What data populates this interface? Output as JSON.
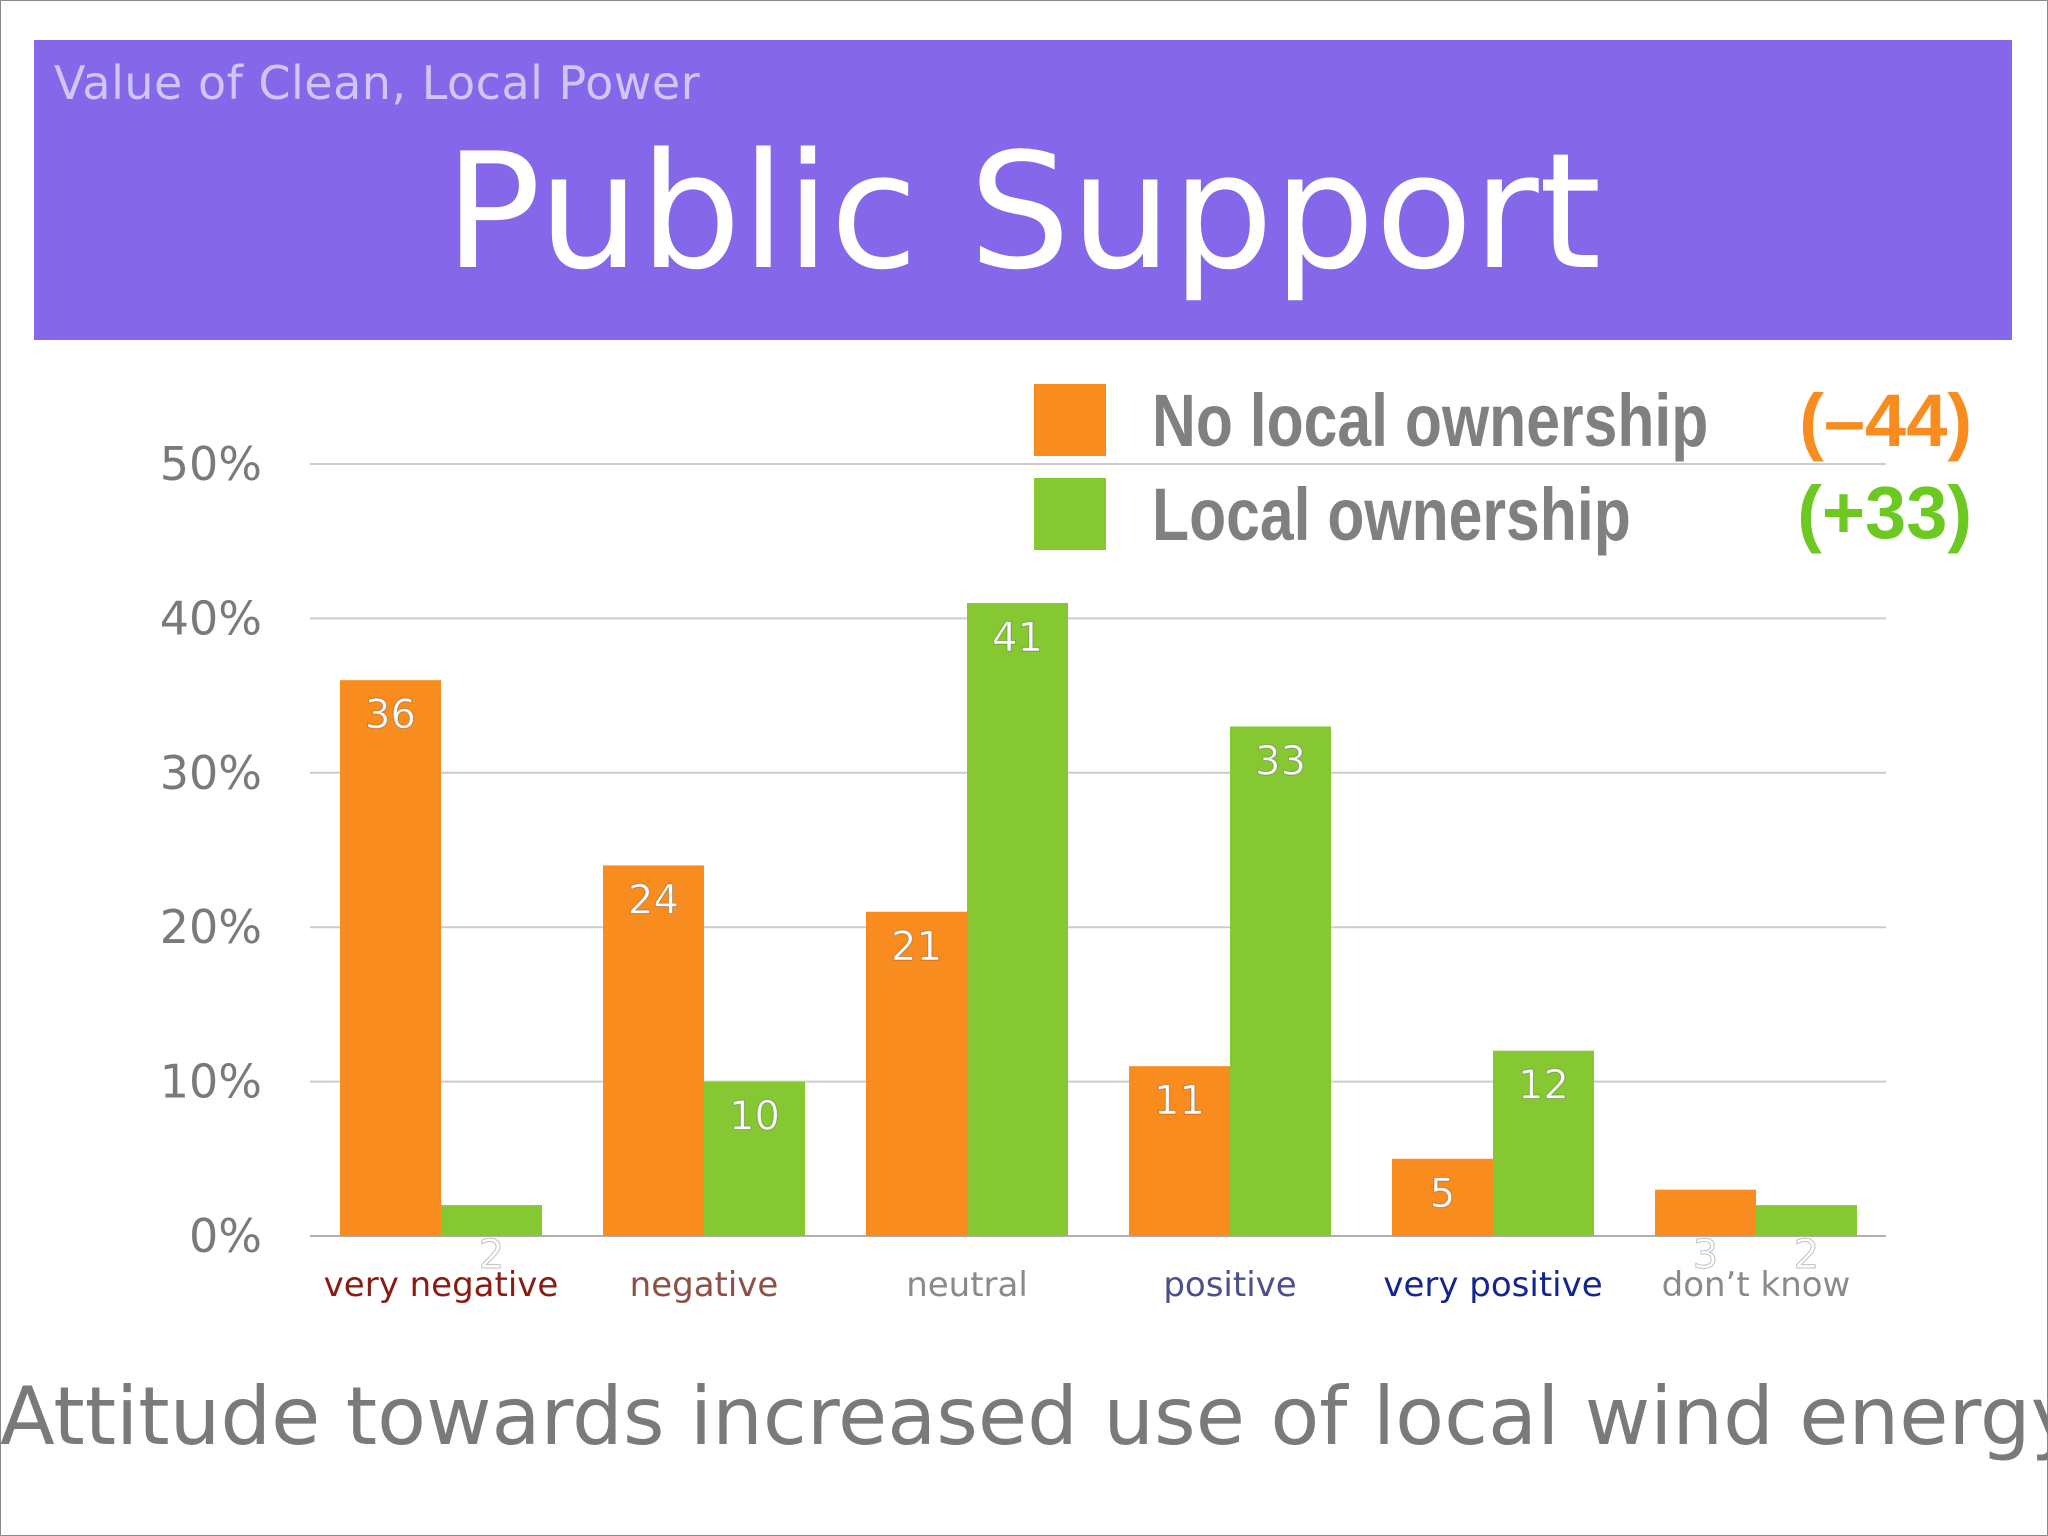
{
  "header": {
    "kicker": "Value of Clean, Local Power",
    "title": "Public Support"
  },
  "legend": [
    {
      "label": "No local ownership",
      "delta": "(–44)",
      "color": "#f98c1e"
    },
    {
      "label": "Local ownership",
      "delta": "(+33)",
      "color": "#86c831"
    }
  ],
  "footer": "Attitude towards increased use of local wind energy",
  "colors": {
    "no_local": "#f98c1e",
    "local": "#86c831",
    "delta_negative": "#f98c1e",
    "delta_positive": "#6cc922"
  },
  "chart_data": {
    "type": "bar",
    "title": "Public Support",
    "xlabel": "Attitude towards increased use of local wind energy",
    "ylabel": "",
    "ylim": [
      0,
      50
    ],
    "yticks": [
      0,
      10,
      20,
      30,
      40,
      50
    ],
    "ytick_labels": [
      "0%",
      "10%",
      "20%",
      "30%",
      "40%",
      "50%"
    ],
    "categories": [
      "very negative",
      "negative",
      "neutral",
      "positive",
      "very positive",
      "don’t know"
    ],
    "category_colors": [
      "#8b1a12",
      "#8e4f44",
      "#8a8a8a",
      "#4b4f8e",
      "#15258f",
      "#8a8a8a"
    ],
    "series": [
      {
        "name": "No local ownership",
        "values": [
          36,
          24,
          21,
          11,
          5,
          3
        ],
        "color": "#f98c1e"
      },
      {
        "name": "Local ownership",
        "values": [
          2,
          10,
          41,
          33,
          12,
          2
        ],
        "color": "#86c831"
      }
    ],
    "grid": true,
    "legend_position": "top-right"
  }
}
